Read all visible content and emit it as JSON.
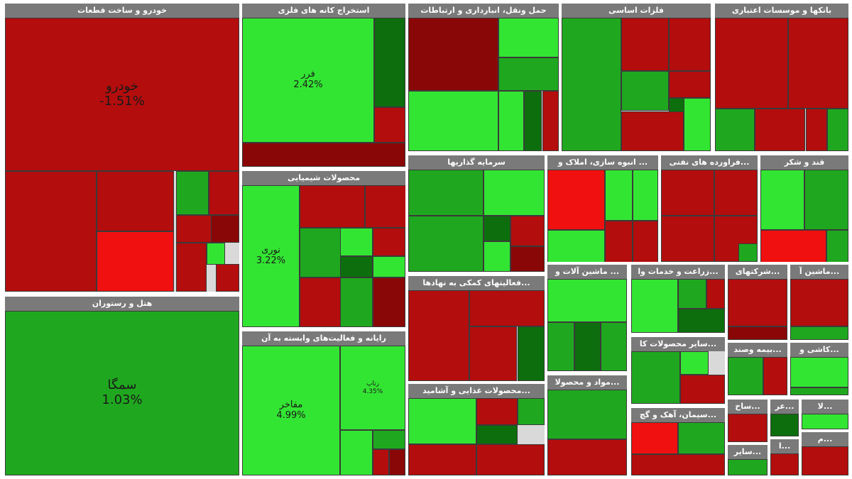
{
  "chart_data": {
    "type": "treemap",
    "colors": {
      "up_strong": "#33e533",
      "up": "#1fa81f",
      "up_dark": "#0d6e0d",
      "down": "#b30d0d",
      "down_strong": "#f01010",
      "down_dark": "#8a0707"
    },
    "sectors": [
      {
        "name": "خودرو و ساخت قطعات",
        "tiles": [
          {
            "symbol": "خودرو",
            "change": "-1.51%",
            "tone": "down"
          },
          {
            "symbol": "",
            "change": "",
            "tone": "down"
          },
          {
            "symbol": "",
            "change": "",
            "tone": "down"
          },
          {
            "symbol": "",
            "change": "",
            "tone": "down_strong"
          },
          {
            "symbol": "",
            "change": "",
            "tone": "up"
          },
          {
            "symbol": "",
            "change": "",
            "tone": "down"
          },
          {
            "symbol": "",
            "change": "",
            "tone": "down"
          },
          {
            "symbol": "",
            "change": "",
            "tone": "up_strong"
          },
          {
            "symbol": "",
            "change": "",
            "tone": "down"
          },
          {
            "symbol": "",
            "change": "",
            "tone": "down_dark"
          },
          {
            "symbol": "",
            "change": "",
            "tone": "down"
          }
        ]
      },
      {
        "name": "هتل و رستوران",
        "tiles": [
          {
            "symbol": "سمگا",
            "change": "1.03%",
            "tone": "up"
          }
        ]
      },
      {
        "name": "استخراج کانه های فلزی",
        "tiles": [
          {
            "symbol": "فرر",
            "change": "2.42%",
            "tone": "up_strong"
          },
          {
            "symbol": "",
            "change": "",
            "tone": "up_dark"
          },
          {
            "symbol": "",
            "change": "",
            "tone": "down"
          },
          {
            "symbol": "",
            "change": "",
            "tone": "down_dark"
          }
        ]
      },
      {
        "name": "محصولات شیمیایی",
        "tiles": [
          {
            "symbol": "نوری",
            "change": "3.22%",
            "tone": "up_strong"
          },
          {
            "symbol": "",
            "change": "",
            "tone": "down"
          },
          {
            "symbol": "",
            "change": "",
            "tone": "down"
          },
          {
            "symbol": "",
            "change": "",
            "tone": "up"
          },
          {
            "symbol": "",
            "change": "",
            "tone": "up_strong"
          },
          {
            "symbol": "",
            "change": "",
            "tone": "down"
          },
          {
            "symbol": "",
            "change": "",
            "tone": "up_dark"
          },
          {
            "symbol": "",
            "change": "",
            "tone": "up_strong"
          },
          {
            "symbol": "",
            "change": "",
            "tone": "down"
          },
          {
            "symbol": "",
            "change": "",
            "tone": "up"
          },
          {
            "symbol": "",
            "change": "",
            "tone": "down_dark"
          }
        ]
      },
      {
        "name": "رایانه و فعالیت‌های وابسته به آن",
        "tiles": [
          {
            "symbol": "مفاخر",
            "change": "4.99%",
            "tone": "up_strong"
          },
          {
            "symbol": "رتاپ",
            "change": "4.35%",
            "tone": "up_strong"
          },
          {
            "symbol": "",
            "change": "",
            "tone": "up_strong"
          },
          {
            "symbol": "",
            "change": "",
            "tone": "up"
          },
          {
            "symbol": "",
            "change": "",
            "tone": "down"
          },
          {
            "symbol": "",
            "change": "",
            "tone": "down_dark"
          }
        ]
      },
      {
        "name": "حمل ونقل، انبارداری و ارتباطات",
        "tiles": [
          {
            "symbol": "",
            "change": "",
            "tone": "down_dark"
          },
          {
            "symbol": "",
            "change": "",
            "tone": "up_strong"
          },
          {
            "symbol": "",
            "change": "",
            "tone": "up"
          },
          {
            "symbol": "",
            "change": "",
            "tone": "up_strong"
          },
          {
            "symbol": "",
            "change": "",
            "tone": "up_strong"
          },
          {
            "symbol": "",
            "change": "",
            "tone": "up_dark"
          },
          {
            "symbol": "",
            "change": "",
            "tone": "down"
          }
        ]
      },
      {
        "name": "فلزات اساسی",
        "tiles": [
          {
            "symbol": "",
            "change": "",
            "tone": "up"
          },
          {
            "symbol": "",
            "change": "",
            "tone": "down"
          },
          {
            "symbol": "",
            "change": "",
            "tone": "down"
          },
          {
            "symbol": "",
            "change": "",
            "tone": "up"
          },
          {
            "symbol": "",
            "change": "",
            "tone": "down"
          },
          {
            "symbol": "",
            "change": "",
            "tone": "up_dark"
          },
          {
            "symbol": "",
            "change": "",
            "tone": "down"
          },
          {
            "symbol": "",
            "change": "",
            "tone": "up_strong"
          }
        ]
      },
      {
        "name": "بانکها و موسسات اعتباری",
        "tiles": [
          {
            "symbol": "",
            "change": "",
            "tone": "down"
          },
          {
            "symbol": "",
            "change": "",
            "tone": "down"
          },
          {
            "symbol": "",
            "change": "",
            "tone": "up"
          },
          {
            "symbol": "",
            "change": "",
            "tone": "down"
          },
          {
            "symbol": "",
            "change": "",
            "tone": "down"
          },
          {
            "symbol": "",
            "change": "",
            "tone": "up"
          }
        ]
      },
      {
        "name": "سرمایه گذاریها",
        "tiles": [
          {
            "symbol": "",
            "change": "",
            "tone": "up"
          },
          {
            "symbol": "",
            "change": "",
            "tone": "up_strong"
          },
          {
            "symbol": "",
            "change": "",
            "tone": "up"
          },
          {
            "symbol": "",
            "change": "",
            "tone": "up_dark"
          },
          {
            "symbol": "",
            "change": "",
            "tone": "down"
          },
          {
            "symbol": "",
            "change": "",
            "tone": "up_strong"
          },
          {
            "symbol": "",
            "change": "",
            "tone": "down_dark"
          }
        ]
      },
      {
        "name": "...فعالیتهای کمکی به نهادها",
        "tiles": [
          {
            "symbol": "",
            "change": "",
            "tone": "down"
          },
          {
            "symbol": "",
            "change": "",
            "tone": "down"
          },
          {
            "symbol": "",
            "change": "",
            "tone": "down"
          },
          {
            "symbol": "",
            "change": "",
            "tone": "up_dark"
          }
        ]
      },
      {
        "name": "...محصولات غذایی و آشامید",
        "tiles": [
          {
            "symbol": "",
            "change": "",
            "tone": "up_strong"
          },
          {
            "symbol": "",
            "change": "",
            "tone": "down"
          },
          {
            "symbol": "",
            "change": "",
            "tone": "up"
          },
          {
            "symbol": "",
            "change": "",
            "tone": "up_dark"
          },
          {
            "symbol": "",
            "change": "",
            "tone": "down"
          },
          {
            "symbol": "",
            "change": "",
            "tone": "down"
          }
        ]
      },
      {
        "name": "... انبوه سازی، املاک و",
        "tiles": [
          {
            "symbol": "",
            "change": "",
            "tone": "down_strong"
          },
          {
            "symbol": "",
            "change": "",
            "tone": "up_strong"
          },
          {
            "symbol": "",
            "change": "",
            "tone": "up_strong"
          },
          {
            "symbol": "",
            "change": "",
            "tone": "up_strong"
          },
          {
            "symbol": "",
            "change": "",
            "tone": "down"
          },
          {
            "symbol": "",
            "change": "",
            "tone": "down"
          }
        ]
      },
      {
        "name": "...فراورده های نفتی",
        "tiles": [
          {
            "symbol": "",
            "change": "",
            "tone": "down"
          },
          {
            "symbol": "",
            "change": "",
            "tone": "down"
          },
          {
            "symbol": "",
            "change": "",
            "tone": "down"
          },
          {
            "symbol": "",
            "change": "",
            "tone": "down"
          },
          {
            "symbol": "",
            "change": "",
            "tone": "up"
          }
        ]
      },
      {
        "name": "قند و شکر",
        "tiles": [
          {
            "symbol": "",
            "change": "",
            "tone": "up_strong"
          },
          {
            "symbol": "",
            "change": "",
            "tone": "up"
          },
          {
            "symbol": "",
            "change": "",
            "tone": "down_strong"
          },
          {
            "symbol": "",
            "change": "",
            "tone": "up"
          }
        ]
      },
      {
        "name": "... ماشین آلات و",
        "tiles": [
          {
            "symbol": "",
            "change": "",
            "tone": "up_strong"
          },
          {
            "symbol": "",
            "change": "",
            "tone": "up"
          },
          {
            "symbol": "",
            "change": "",
            "tone": "up_dark"
          },
          {
            "symbol": "",
            "change": "",
            "tone": "up"
          }
        ]
      },
      {
        "name": "...زراعت و خدمات وا",
        "tiles": [
          {
            "symbol": "",
            "change": "",
            "tone": "up_strong"
          },
          {
            "symbol": "",
            "change": "",
            "tone": "up"
          },
          {
            "symbol": "",
            "change": "",
            "tone": "down"
          },
          {
            "symbol": "",
            "change": "",
            "tone": "up_dark"
          }
        ]
      },
      {
        "name": "...شرکتهای",
        "tiles": [
          {
            "symbol": "",
            "change": "",
            "tone": "down"
          },
          {
            "symbol": "",
            "change": "",
            "tone": "down_dark"
          }
        ]
      },
      {
        "name": "...ماشین آ",
        "tiles": [
          {
            "symbol": "",
            "change": "",
            "tone": "down"
          },
          {
            "symbol": "",
            "change": "",
            "tone": "up"
          }
        ]
      },
      {
        "name": "...سایر محصولات کا",
        "tiles": [
          {
            "symbol": "",
            "change": "",
            "tone": "up"
          },
          {
            "symbol": "",
            "change": "",
            "tone": "up_strong"
          },
          {
            "symbol": "",
            "change": "",
            "tone": "down"
          }
        ]
      },
      {
        "name": "...بیمه وصند",
        "tiles": [
          {
            "symbol": "",
            "change": "",
            "tone": "up"
          },
          {
            "symbol": "",
            "change": "",
            "tone": "down"
          }
        ]
      },
      {
        "name": "...کاشی و",
        "tiles": [
          {
            "symbol": "",
            "change": "",
            "tone": "up_strong"
          },
          {
            "symbol": "",
            "change": "",
            "tone": "up"
          }
        ]
      },
      {
        "name": "...مواد و محصولا",
        "tiles": [
          {
            "symbol": "",
            "change": "",
            "tone": "up"
          },
          {
            "symbol": "",
            "change": "",
            "tone": "down"
          }
        ]
      },
      {
        "name": "...سیمان، آهک و گچ",
        "tiles": [
          {
            "symbol": "",
            "change": "",
            "tone": "down_strong"
          },
          {
            "symbol": "",
            "change": "",
            "tone": "up"
          },
          {
            "symbol": "",
            "change": "",
            "tone": "down"
          }
        ]
      },
      {
        "name": "...ساخ",
        "tiles": [
          {
            "symbol": "",
            "change": "",
            "tone": "down"
          }
        ]
      },
      {
        "name": "...سایر",
        "tiles": [
          {
            "symbol": "",
            "change": "",
            "tone": "up"
          }
        ]
      },
      {
        "name": "...عر",
        "tiles": [
          {
            "symbol": "",
            "change": "",
            "tone": "up_dark"
          }
        ]
      },
      {
        "name": "...ا",
        "tiles": [
          {
            "symbol": "",
            "change": "",
            "tone": "down"
          }
        ]
      },
      {
        "name": "...لا",
        "tiles": [
          {
            "symbol": "",
            "change": "",
            "tone": "up_strong"
          }
        ]
      },
      {
        "name": "...م",
        "tiles": [
          {
            "symbol": "",
            "change": "",
            "tone": "down"
          }
        ]
      }
    ]
  }
}
